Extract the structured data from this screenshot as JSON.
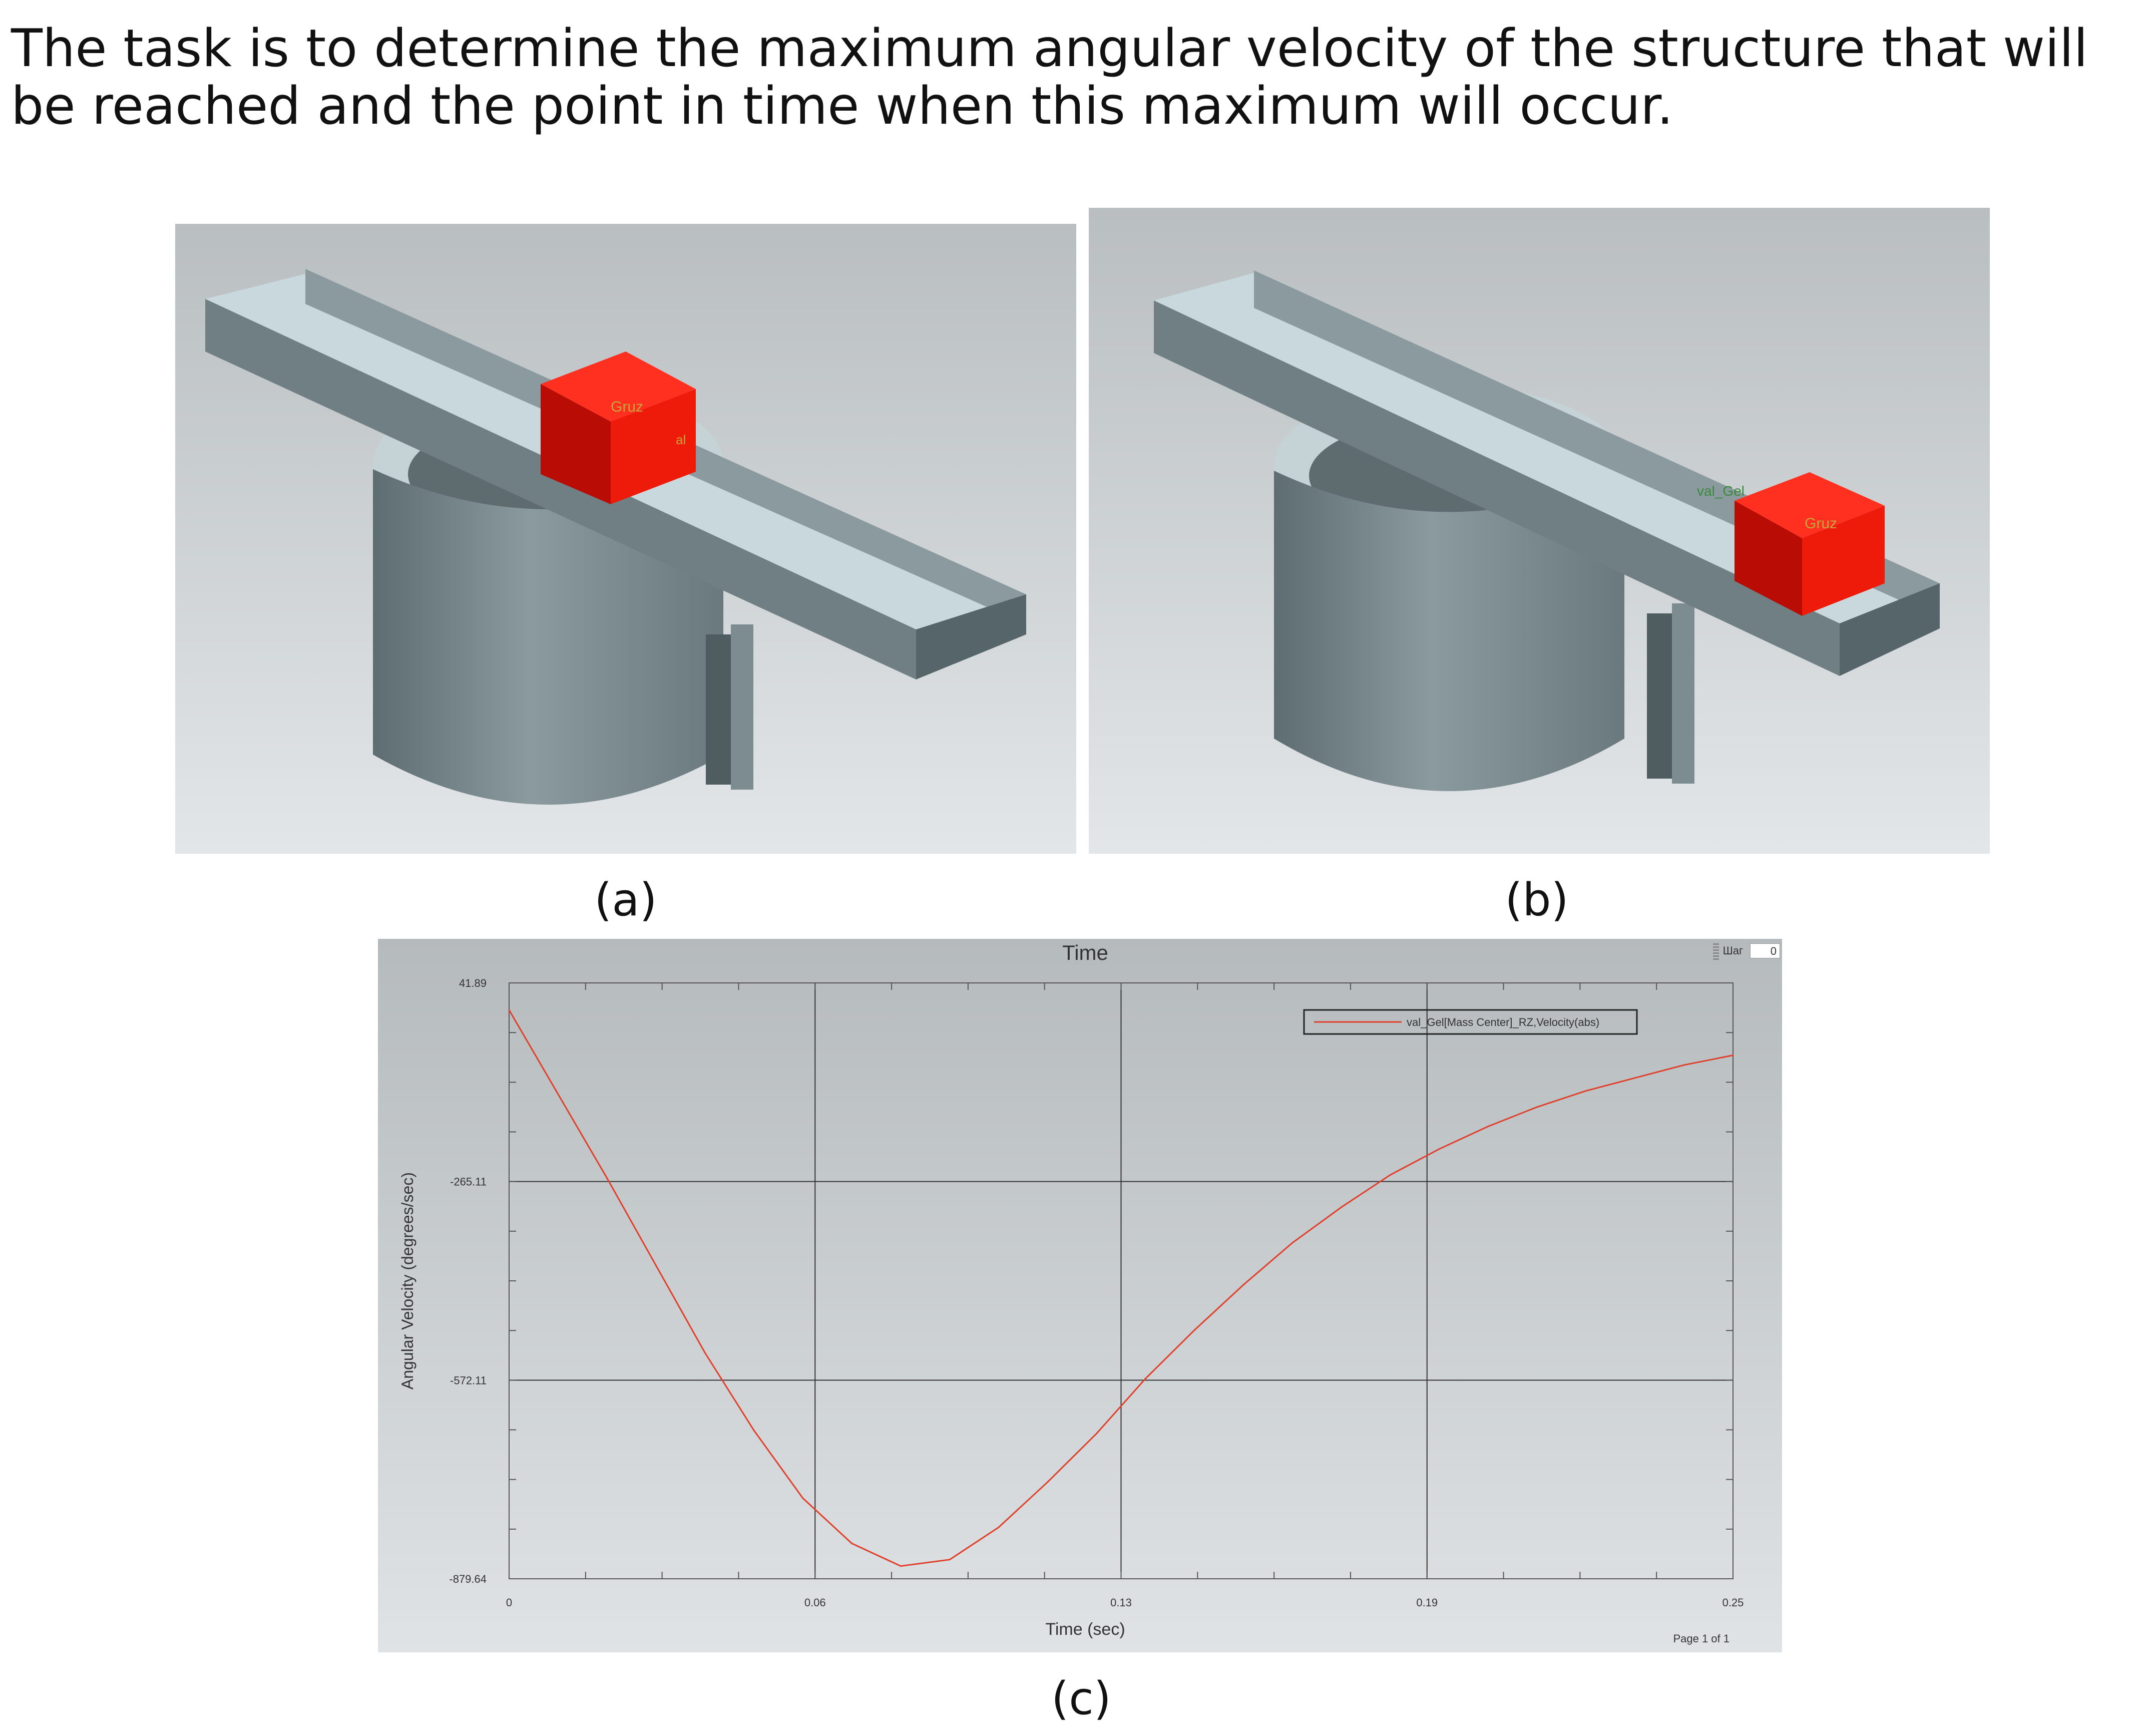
{
  "intro_text": "The task is to determine the maximum angular velocity of the structure that will be reached and the point in time when this maximum will occur.",
  "figures": {
    "a": {
      "caption": "(a)",
      "block_label": "Gruz",
      "partial_label": "al"
    },
    "b": {
      "caption": "(b)",
      "block_label": "Gruz",
      "partial_label": "val_Gel"
    },
    "c": {
      "caption": "(c)"
    }
  },
  "plot_ui": {
    "step_label": "Шаг",
    "step_value": "0",
    "page_text": "Page 1 of 1"
  },
  "colors": {
    "series": "#e0412d",
    "block": "#ee1a0a",
    "metal": "#6f7f84",
    "rail_top": "#c8d8dc"
  },
  "chart_data": {
    "type": "line",
    "title": "Time",
    "xlabel": "Time (sec)",
    "ylabel": "Angular Velocity (degrees/sec)",
    "xlim": [
      0,
      0.25
    ],
    "ylim": [
      -879.64,
      41.89
    ],
    "xticks": [
      "0",
      "0.06",
      "0.13",
      "0.19",
      "0.25"
    ],
    "yticks": [
      "41.89",
      "-265.11",
      "-572.11",
      "-879.64"
    ],
    "grid": true,
    "legend_position": "top-right",
    "series": [
      {
        "name": "val_Gel[Mass Center]_RZ,Velocity(abs)",
        "x": [
          0,
          0.01,
          0.02,
          0.03,
          0.04,
          0.05,
          0.06,
          0.07,
          0.08,
          0.09,
          0.1,
          0.11,
          0.12,
          0.13,
          0.14,
          0.15,
          0.16,
          0.17,
          0.18,
          0.19,
          0.2,
          0.21,
          0.22,
          0.23,
          0.24,
          0.25
        ],
        "y": [
          0,
          -130,
          -260,
          -395,
          -530,
          -650,
          -755,
          -825,
          -860,
          -850,
          -800,
          -730,
          -655,
          -570,
          -495,
          -425,
          -360,
          -305,
          -255,
          -215,
          -180,
          -150,
          -125,
          -105,
          -85,
          -70
        ]
      }
    ]
  }
}
